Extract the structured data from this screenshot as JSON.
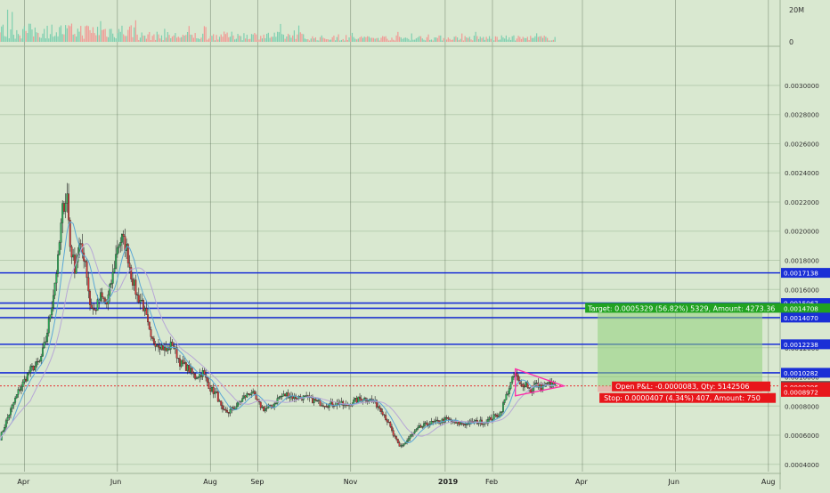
{
  "chart_data": {
    "type": "candlestick",
    "colors": {
      "background": "#d9e8d0",
      "grid": "#b8cdb0",
      "up": "#26a69a",
      "down": "#ef5350",
      "wick": "#222222",
      "level_line": "#1a2fd6",
      "triangle": "#ff2aa8",
      "target_zone": "#8fd07a",
      "stop_label": "#e8161b",
      "target_label": "#21a321",
      "current_label": "#555555",
      "ma1": "#5aa7d6",
      "ma2": "#b7a7d6"
    },
    "volume_axis": {
      "ticks": [
        "20M",
        "0"
      ]
    },
    "price_axis": {
      "min": 0.00035,
      "max": 0.00325,
      "ticks": [
        "0.0004000",
        "0.0006000",
        "0.0008000",
        "0.0010000",
        "0.0012000",
        "0.0014000",
        "0.0016000",
        "0.0018000",
        "0.0020000",
        "0.0022000",
        "0.0024000",
        "0.0026000",
        "0.0028000",
        "0.0030000"
      ],
      "tick_values": [
        0.0004,
        0.0006,
        0.0008,
        0.001,
        0.0012,
        0.0014,
        0.0016,
        0.0018,
        0.002,
        0.0022,
        0.0024,
        0.0026,
        0.0028,
        0.003
      ]
    },
    "time_axis": {
      "labels": [
        "Apr",
        "Jun",
        "Aug",
        "Sep",
        "Nov",
        "2019",
        "Feb",
        "Apr",
        "Jun",
        "Aug"
      ],
      "label_days": [
        16,
        77,
        138,
        169,
        230,
        292,
        323,
        382,
        443,
        504
      ],
      "bold_labels": [
        "2019"
      ]
    },
    "levels": [
      0.0017138,
      0.0015067,
      0.0014708,
      0.001407,
      0.0012238,
      0.0010282
    ],
    "price_labels": [
      {
        "text": "0.0017138",
        "value": 0.0017138,
        "kind": "level"
      },
      {
        "text": "0.0015067",
        "value": 0.0015067,
        "kind": "level"
      },
      {
        "text": "0.0014708",
        "value": 0.0014708,
        "kind": "target"
      },
      {
        "text": "0.0014070",
        "value": 0.001407,
        "kind": "level"
      },
      {
        "text": "0.0012238",
        "value": 0.0012238,
        "kind": "level"
      },
      {
        "text": "0.0010282",
        "value": 0.0010282,
        "kind": "level"
      },
      {
        "text": "0.0009379",
        "value": 0.0009379,
        "kind": "current"
      },
      {
        "text": "0.0009296",
        "value": 0.0009296,
        "kind": "stop"
      },
      {
        "text": "0.0008972",
        "value": 0.0008972,
        "kind": "stop"
      }
    ],
    "position": {
      "entry": 0.0009379,
      "target": 0.0014708,
      "stop": 0.0008972,
      "start_day": 392,
      "end_day": 500,
      "target_text": "Target: 0.0005329 (56.82%) 5329, Amount: 4273.36",
      "pnl_text": "Open P&L: -0.0000083, Qty: 5142506",
      "stop_text": "Stop: 0.0000407 (4.34%) 407, Amount: 750"
    },
    "triangle": {
      "points": [
        [
          338,
          0.001055
        ],
        [
          370,
          0.0009379
        ],
        [
          338,
          0.00087
        ]
      ]
    },
    "price_keypoints": [
      [
        0,
        0.00058
      ],
      [
        5,
        0.00072
      ],
      [
        12,
        0.0009
      ],
      [
        20,
        0.00105
      ],
      [
        26,
        0.0011
      ],
      [
        30,
        0.00125
      ],
      [
        34,
        0.0015
      ],
      [
        38,
        0.0018
      ],
      [
        41,
        0.00215
      ],
      [
        44,
        0.00225
      ],
      [
        46,
        0.0019
      ],
      [
        49,
        0.00175
      ],
      [
        52,
        0.0019
      ],
      [
        56,
        0.0018
      ],
      [
        59,
        0.0015
      ],
      [
        62,
        0.00145
      ],
      [
        66,
        0.00155
      ],
      [
        70,
        0.0015
      ],
      [
        74,
        0.0017
      ],
      [
        77,
        0.0019
      ],
      [
        80,
        0.00195
      ],
      [
        83,
        0.00188
      ],
      [
        86,
        0.0017
      ],
      [
        90,
        0.00155
      ],
      [
        93,
        0.00152
      ],
      [
        96,
        0.0014
      ],
      [
        99,
        0.00125
      ],
      [
        104,
        0.00123
      ],
      [
        109,
        0.00118
      ],
      [
        113,
        0.00123
      ],
      [
        118,
        0.0011
      ],
      [
        123,
        0.00106
      ],
      [
        128,
        0.001
      ],
      [
        133,
        0.00103
      ],
      [
        138,
        0.00092
      ],
      [
        142,
        0.00088
      ],
      [
        146,
        0.00076
      ],
      [
        150,
        0.00076
      ],
      [
        155,
        0.0008
      ],
      [
        160,
        0.00086
      ],
      [
        165,
        0.0009
      ],
      [
        169,
        0.00082
      ],
      [
        173,
        0.00078
      ],
      [
        178,
        0.00079
      ],
      [
        183,
        0.00086
      ],
      [
        188,
        0.00088
      ],
      [
        193,
        0.00086
      ],
      [
        198,
        0.00086
      ],
      [
        203,
        0.00085
      ],
      [
        210,
        0.00082
      ],
      [
        216,
        0.00081
      ],
      [
        222,
        0.00082
      ],
      [
        227,
        0.0008
      ],
      [
        232,
        0.00083
      ],
      [
        236,
        0.00085
      ],
      [
        242,
        0.00085
      ],
      [
        246,
        0.00082
      ],
      [
        250,
        0.00078
      ],
      [
        254,
        0.0007
      ],
      [
        258,
        0.0006
      ],
      [
        262,
        0.00052
      ],
      [
        266,
        0.00055
      ],
      [
        270,
        0.0006
      ],
      [
        275,
        0.00065
      ],
      [
        281,
        0.00068
      ],
      [
        287,
        0.00069
      ],
      [
        293,
        0.00071
      ],
      [
        299,
        0.00068
      ],
      [
        305,
        0.00068
      ],
      [
        312,
        0.00069
      ],
      [
        318,
        0.00069
      ],
      [
        323,
        0.00072
      ],
      [
        328,
        0.00075
      ],
      [
        333,
        0.0009
      ],
      [
        336,
        0.00098
      ],
      [
        338,
        0.00102
      ],
      [
        341,
        0.00094
      ],
      [
        345,
        0.00096
      ],
      [
        348,
        0.0009
      ],
      [
        351,
        0.00095
      ],
      [
        355,
        0.00093
      ],
      [
        360,
        0.00095
      ],
      [
        364,
        0.00094
      ]
    ]
  }
}
